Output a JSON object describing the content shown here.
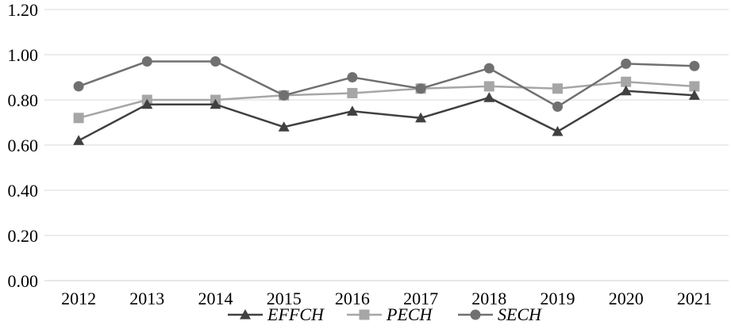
{
  "chart_data": {
    "type": "line",
    "title": "",
    "xlabel": "",
    "ylabel": "",
    "categories": [
      "2012",
      "2013",
      "2014",
      "2015",
      "2016",
      "2017",
      "2018",
      "2019",
      "2020",
      "2021"
    ],
    "ylim": [
      0,
      1.2
    ],
    "yticks": [
      "0.00",
      "0.20",
      "0.40",
      "0.60",
      "0.80",
      "1.00",
      "1.20"
    ],
    "grid": true,
    "legend": "bottom",
    "series": [
      {
        "name": "EFFCH",
        "marker": "triangle",
        "color": "#404040",
        "values": [
          0.62,
          0.78,
          0.78,
          0.68,
          0.75,
          0.72,
          0.81,
          0.66,
          0.84,
          0.82
        ]
      },
      {
        "name": "PECH",
        "marker": "square",
        "color": "#a6a6a6",
        "values": [
          0.72,
          0.8,
          0.8,
          0.82,
          0.83,
          0.85,
          0.86,
          0.85,
          0.88,
          0.86
        ]
      },
      {
        "name": "SECH",
        "marker": "circle",
        "color": "#707070",
        "values": [
          0.86,
          0.97,
          0.97,
          0.82,
          0.9,
          0.85,
          0.94,
          0.77,
          0.96,
          0.95
        ]
      }
    ]
  }
}
